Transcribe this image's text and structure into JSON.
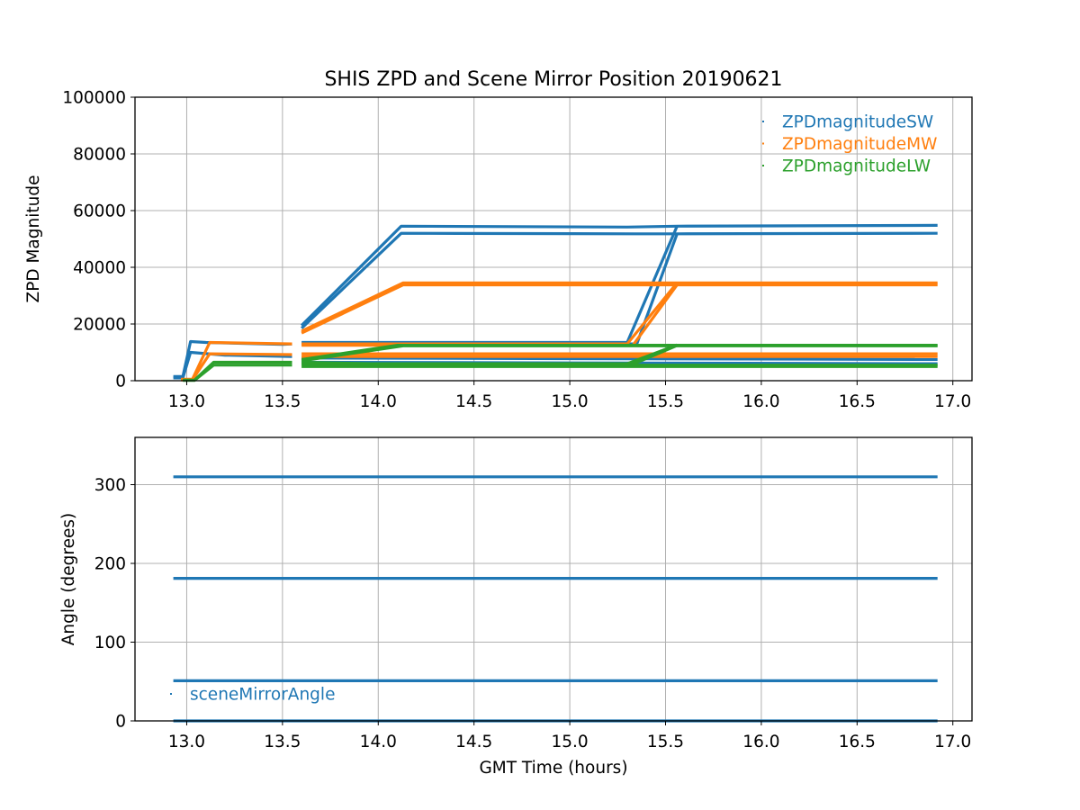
{
  "chart_data": [
    {
      "type": "scatter",
      "title": "SHIS ZPD and Scene Mirror Position 20190621",
      "xlabel": "",
      "ylabel": "ZPD Magnitude",
      "xlim": [
        12.73,
        17.1
      ],
      "ylim": [
        0,
        100000
      ],
      "x_ticks": [
        "13.0",
        "13.5",
        "14.0",
        "14.5",
        "15.0",
        "15.5",
        "16.0",
        "16.5",
        "17.0"
      ],
      "y_ticks": [
        "0",
        "20000",
        "40000",
        "60000",
        "80000",
        "100000"
      ],
      "grid": true,
      "legend_position": "upper-right",
      "series": [
        {
          "name": "ZPDmagnitudeSW",
          "color": "#1f77b4",
          "segments": [
            [
              [
                12.93,
                1500
              ],
              [
                12.98,
                1500
              ],
              [
                13.02,
                13800
              ],
              [
                13.1,
                13500
              ],
              [
                13.5,
                12800
              ],
              [
                13.55,
                13000
              ]
            ],
            [
              [
                12.93,
                1000
              ],
              [
                12.98,
                1000
              ],
              [
                13.02,
                10000
              ],
              [
                13.2,
                9000
              ],
              [
                13.55,
                8500
              ]
            ],
            [
              [
                13.6,
                19500
              ],
              [
                14.12,
                54500
              ],
              [
                15.3,
                54200
              ],
              [
                15.56,
                54500
              ],
              [
                16.92,
                54800
              ]
            ],
            [
              [
                13.6,
                18500
              ],
              [
                14.12,
                52000
              ],
              [
                15.35,
                51800
              ],
              [
                15.56,
                51800
              ],
              [
                16.92,
                52000
              ]
            ],
            [
              [
                13.6,
                13500
              ],
              [
                15.3,
                13500
              ],
              [
                15.56,
                54500
              ]
            ],
            [
              [
                13.6,
                13000
              ],
              [
                15.35,
                13000
              ],
              [
                15.56,
                51800
              ]
            ],
            [
              [
                13.6,
                8000
              ],
              [
                16.92,
                7500
              ]
            ],
            [
              [
                13.6,
                6500
              ],
              [
                16.92,
                6000
              ]
            ]
          ]
        },
        {
          "name": "ZPDmagnitudeMW",
          "color": "#ff7f0e",
          "segments": [
            [
              [
                12.97,
                500
              ],
              [
                13.03,
                500
              ],
              [
                13.12,
                13500
              ],
              [
                13.55,
                13000
              ]
            ],
            [
              [
                12.97,
                300
              ],
              [
                13.03,
                300
              ],
              [
                13.12,
                9500
              ],
              [
                13.55,
                9200
              ]
            ],
            [
              [
                13.6,
                17500
              ],
              [
                14.13,
                34500
              ],
              [
                16.92,
                34500
              ]
            ],
            [
              [
                13.6,
                16800
              ],
              [
                14.13,
                33800
              ],
              [
                16.92,
                33800
              ]
            ],
            [
              [
                13.6,
                13000
              ],
              [
                15.3,
                13000
              ],
              [
                15.56,
                34500
              ]
            ],
            [
              [
                13.6,
                12500
              ],
              [
                15.33,
                12500
              ],
              [
                15.56,
                33800
              ]
            ],
            [
              [
                13.6,
                9500
              ],
              [
                16.92,
                9500
              ]
            ],
            [
              [
                13.6,
                8500
              ],
              [
                16.92,
                8500
              ]
            ]
          ]
        },
        {
          "name": "ZPDmagnitudeLW",
          "color": "#2ca02c",
          "segments": [
            [
              [
                12.98,
                200
              ],
              [
                13.04,
                200
              ],
              [
                13.14,
                6500
              ],
              [
                13.55,
                6500
              ]
            ],
            [
              [
                12.98,
                100
              ],
              [
                13.04,
                100
              ],
              [
                13.14,
                5500
              ],
              [
                13.55,
                5500
              ]
            ],
            [
              [
                13.6,
                7500
              ],
              [
                14.1,
                12500
              ],
              [
                16.92,
                12500
              ]
            ],
            [
              [
                13.6,
                7000
              ],
              [
                14.13,
                12300
              ],
              [
                16.92,
                12300
              ]
            ],
            [
              [
                13.6,
                6000
              ],
              [
                15.3,
                6000
              ],
              [
                15.56,
                12600
              ]
            ],
            [
              [
                13.6,
                5800
              ],
              [
                15.33,
                5800
              ],
              [
                15.56,
                12400
              ]
            ],
            [
              [
                13.6,
                6500
              ],
              [
                14.35,
                5500
              ],
              [
                16.92,
                5500
              ]
            ],
            [
              [
                13.6,
                5000
              ],
              [
                16.92,
                5000
              ]
            ]
          ]
        }
      ]
    },
    {
      "type": "scatter",
      "title": "",
      "xlabel": "GMT Time (hours)",
      "ylabel": "Angle (degrees)",
      "xlim": [
        12.73,
        17.1
      ],
      "ylim": [
        0,
        360
      ],
      "x_ticks": [
        "13.0",
        "13.5",
        "14.0",
        "14.5",
        "15.0",
        "15.5",
        "16.0",
        "16.5",
        "17.0"
      ],
      "y_ticks": [
        "0",
        "100",
        "200",
        "300"
      ],
      "grid": true,
      "legend_position": "lower-left",
      "series": [
        {
          "name": "sceneMirrorAngle",
          "color": "#1f77b4",
          "segments": [
            [
              [
                12.93,
                310
              ],
              [
                16.92,
                310
              ]
            ],
            [
              [
                12.93,
                181
              ],
              [
                16.92,
                181
              ]
            ],
            [
              [
                12.93,
                51
              ],
              [
                16.92,
                51
              ]
            ],
            [
              [
                12.93,
                0
              ],
              [
                16.92,
                0
              ]
            ]
          ]
        }
      ]
    }
  ]
}
